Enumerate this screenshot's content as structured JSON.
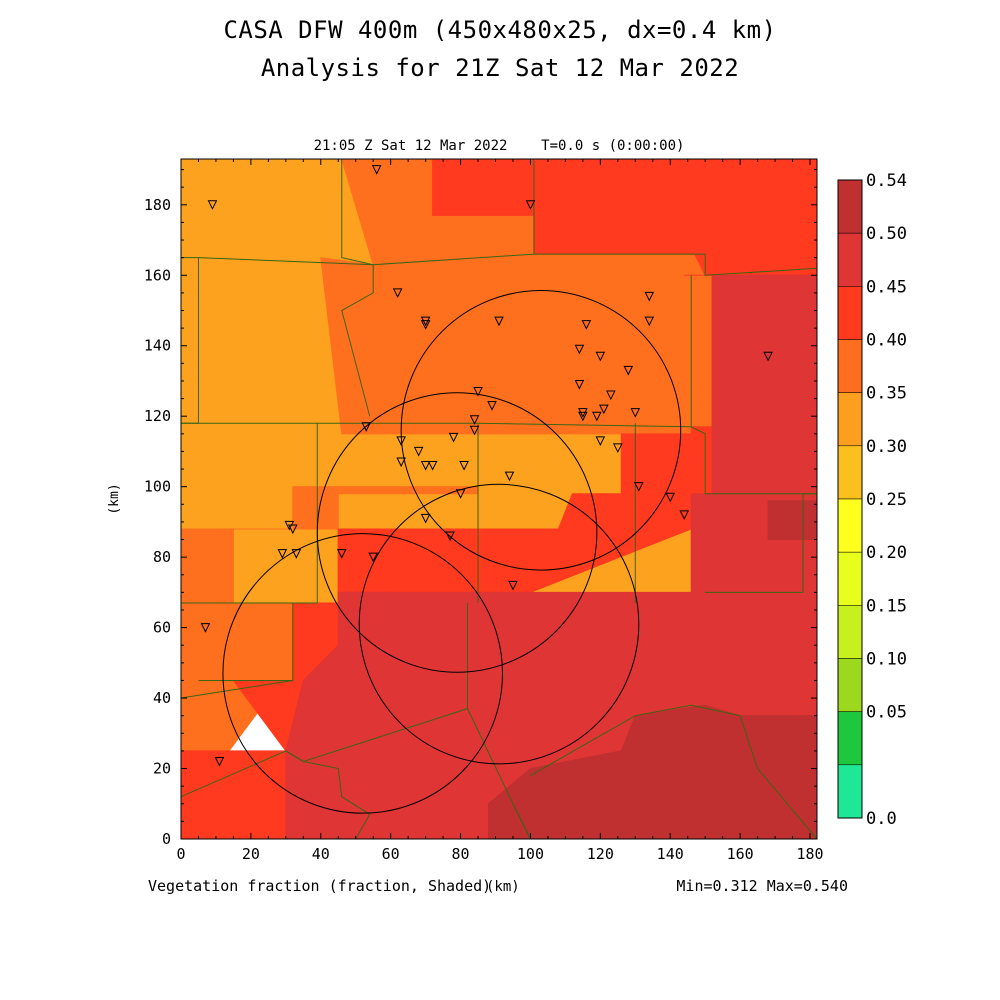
{
  "title_line1": "CASA DFW 400m (450x480x25, dx=0.4 km)",
  "title_line2": "Analysis for 21Z Sat 12 Mar 2022",
  "chart_data": {
    "type": "heatmap",
    "subtitle": "21:05 Z Sat 12 Mar 2022    T=0.0 s (0:00:00)",
    "xlabel": "(km)",
    "ylabel": "(km)",
    "field_label": "Vegetation fraction (fraction, Shaded)",
    "min_max": "Min=0.312 Max=0.540",
    "xlim": [
      0,
      182
    ],
    "ylim": [
      0,
      193
    ],
    "x_ticks": [
      0,
      20,
      40,
      60,
      80,
      100,
      120,
      140,
      160,
      180
    ],
    "y_ticks": [
      0,
      20,
      40,
      60,
      80,
      100,
      120,
      140,
      160,
      180
    ],
    "colorbar": {
      "labels": [
        "0.54",
        "0.50",
        "0.45",
        "0.40",
        "0.35",
        "0.30",
        "0.25",
        "0.20",
        "0.15",
        "0.10",
        "0.05",
        "0.0"
      ],
      "colors": [
        "#c03030",
        "#e03535",
        "#ff3a1e",
        "#ff6e1e",
        "#fc9e1e",
        "#fcc01e",
        "#ffff1e",
        "#e8ff1e",
        "#c8f01e",
        "#9cd81e",
        "#1ec83c",
        "#1ee896"
      ]
    },
    "regions": [
      {
        "value": 0.33,
        "color": "#fca21e",
        "points": [
          [
            0,
            193
          ],
          [
            182,
            193
          ],
          [
            182,
            67
          ],
          [
            0,
            67
          ]
        ]
      },
      {
        "value": 0.37,
        "color": "#ff701e",
        "points": [
          [
            46,
            193
          ],
          [
            182,
            193
          ],
          [
            182,
            70
          ],
          [
            150,
            70
          ],
          [
            150,
            115
          ],
          [
            85,
            115
          ],
          [
            85,
            98
          ],
          [
            45,
            98
          ],
          [
            45,
            88
          ],
          [
            0,
            88
          ],
          [
            0,
            67
          ],
          [
            15,
            67
          ],
          [
            15,
            88
          ],
          [
            32,
            88
          ],
          [
            32,
            100
          ],
          [
            85,
            100
          ],
          [
            85,
            115
          ],
          [
            46,
            115
          ],
          [
            40,
            165
          ],
          [
            55,
            163
          ]
        ]
      },
      {
        "value": 0.37,
        "color": "#ff701e",
        "points": [
          [
            0,
            67
          ],
          [
            40,
            67
          ],
          [
            40,
            40
          ],
          [
            25,
            40
          ],
          [
            10,
            20
          ],
          [
            0,
            20
          ]
        ]
      },
      {
        "value": 0.42,
        "color": "#ff3a1e",
        "points": [
          [
            72,
            193
          ],
          [
            182,
            193
          ],
          [
            182,
            160
          ],
          [
            150,
            160
          ],
          [
            147,
            166
          ],
          [
            101,
            166
          ],
          [
            101,
            177
          ],
          [
            72,
            177
          ]
        ]
      },
      {
        "value": 0.42,
        "color": "#ff3a1e",
        "points": [
          [
            144,
            160
          ],
          [
            152,
            160
          ],
          [
            152,
            117
          ],
          [
            146,
            117
          ],
          [
            146,
            98
          ],
          [
            150,
            98
          ],
          [
            150,
            70
          ],
          [
            182,
            70
          ],
          [
            182,
            160
          ]
        ]
      },
      {
        "value": 0.42,
        "color": "#ff3a1e",
        "points": [
          [
            45,
            88
          ],
          [
            108,
            88
          ],
          [
            112,
            98
          ],
          [
            126,
            98
          ],
          [
            126,
            115
          ],
          [
            146,
            115
          ],
          [
            146,
            88
          ],
          [
            100,
            70
          ],
          [
            45,
            70
          ]
        ]
      },
      {
        "value": 0.42,
        "color": "#ff3a1e",
        "points": [
          [
            32,
            67
          ],
          [
            45,
            67
          ],
          [
            45,
            88
          ],
          [
            60,
            88
          ],
          [
            60,
            63
          ],
          [
            80,
            63
          ],
          [
            80,
            25
          ],
          [
            0,
            25
          ],
          [
            0,
            0
          ],
          [
            30,
            0
          ],
          [
            30,
            25
          ],
          [
            15,
            45
          ],
          [
            32,
            45
          ]
        ]
      },
      {
        "value": 0.47,
        "color": "#e03535",
        "points": [
          [
            45,
            70
          ],
          [
            125,
            70
          ],
          [
            146,
            70
          ],
          [
            146,
            98
          ],
          [
            152,
            98
          ],
          [
            152,
            160
          ],
          [
            182,
            160
          ],
          [
            182,
            0
          ],
          [
            30,
            0
          ],
          [
            30,
            25
          ],
          [
            35,
            45
          ],
          [
            45,
            55
          ]
        ]
      },
      {
        "value": 0.47,
        "color": "#e03535",
        "points": [
          [
            45,
            70
          ],
          [
            60,
            70
          ],
          [
            60,
            63
          ],
          [
            45,
            63
          ]
        ]
      },
      {
        "value": 0.52,
        "color": "#c03030",
        "points": [
          [
            100,
            0
          ],
          [
            182,
            0
          ],
          [
            182,
            35
          ],
          [
            160,
            35
          ],
          [
            150,
            38
          ],
          [
            130,
            35
          ],
          [
            126,
            25
          ],
          [
            100,
            20
          ],
          [
            88,
            10
          ],
          [
            88,
            0
          ]
        ]
      },
      {
        "value": 0.52,
        "color": "#c03030",
        "points": [
          [
            168,
            96
          ],
          [
            182,
            96
          ],
          [
            182,
            85
          ],
          [
            168,
            85
          ]
        ]
      }
    ],
    "stations": [
      [
        9,
        180
      ],
      [
        56,
        190
      ],
      [
        100,
        180
      ],
      [
        62,
        155
      ],
      [
        70,
        146
      ],
      [
        70,
        147
      ],
      [
        91,
        147
      ],
      [
        116,
        146
      ],
      [
        134,
        154
      ],
      [
        134,
        147
      ],
      [
        114,
        139
      ],
      [
        120,
        137
      ],
      [
        114,
        129
      ],
      [
        128,
        133
      ],
      [
        123,
        126
      ],
      [
        85,
        127
      ],
      [
        89,
        123
      ],
      [
        115,
        121
      ],
      [
        115,
        120
      ],
      [
        121,
        122
      ],
      [
        119,
        120
      ],
      [
        130,
        121
      ],
      [
        53,
        117
      ],
      [
        84,
        119
      ],
      [
        84,
        116
      ],
      [
        63,
        113
      ],
      [
        78,
        114
      ],
      [
        68,
        110
      ],
      [
        120,
        113
      ],
      [
        125,
        111
      ],
      [
        63,
        107
      ],
      [
        70,
        106
      ],
      [
        72,
        106
      ],
      [
        81,
        106
      ],
      [
        94,
        103
      ],
      [
        131,
        100
      ],
      [
        80,
        98
      ],
      [
        140,
        97
      ],
      [
        144,
        92
      ],
      [
        70,
        91
      ],
      [
        31,
        89
      ],
      [
        32,
        88
      ],
      [
        29,
        81
      ],
      [
        33,
        81
      ],
      [
        46,
        81
      ],
      [
        55,
        80
      ],
      [
        77,
        86
      ],
      [
        95,
        72
      ],
      [
        7,
        60
      ],
      [
        11,
        22
      ],
      [
        168,
        137
      ]
    ],
    "radar_rings": [
      {
        "center": [
          52,
          47
        ],
        "radius": 40
      },
      {
        "center": [
          79,
          87
        ],
        "radius": 40
      },
      {
        "center": [
          103,
          116
        ],
        "radius": 40
      },
      {
        "center": [
          91,
          61
        ],
        "radius": 40
      }
    ],
    "boundaries": [
      [
        [
          0,
          165
        ],
        [
          5,
          165
        ],
        [
          5,
          118
        ],
        [
          0,
          118
        ]
      ],
      [
        [
          5,
          165
        ],
        [
          55,
          163
        ],
        [
          55,
          155
        ],
        [
          46,
          150
        ],
        [
          54,
          120
        ]
      ],
      [
        [
          46,
          193
        ],
        [
          46,
          165
        ],
        [
          55,
          163
        ],
        [
          101,
          166
        ],
        [
          101,
          193
        ]
      ],
      [
        [
          101,
          166
        ],
        [
          150,
          166
        ],
        [
          150,
          160
        ],
        [
          182,
          162
        ]
      ],
      [
        [
          0,
          118
        ],
        [
          54,
          118
        ],
        [
          85,
          118
        ],
        [
          146,
          117
        ],
        [
          150,
          115
        ],
        [
          150,
          98
        ],
        [
          182,
          98
        ]
      ],
      [
        [
          39,
          118
        ],
        [
          39,
          67
        ],
        [
          0,
          67
        ]
      ],
      [
        [
          85,
          118
        ],
        [
          85,
          67
        ]
      ],
      [
        [
          130,
          118
        ],
        [
          130,
          67
        ]
      ],
      [
        [
          146,
          117
        ],
        [
          146,
          160
        ]
      ],
      [
        [
          182,
          98
        ],
        [
          178,
          98
        ],
        [
          178,
          70
        ],
        [
          150,
          70
        ]
      ],
      [
        [
          0,
          67
        ],
        [
          32,
          67
        ],
        [
          32,
          45
        ],
        [
          5,
          45
        ]
      ],
      [
        [
          0,
          40
        ],
        [
          32,
          45
        ]
      ],
      [
        [
          0,
          12
        ],
        [
          30,
          25
        ],
        [
          35,
          22
        ],
        [
          45,
          20
        ],
        [
          46,
          12
        ],
        [
          54,
          7
        ],
        [
          50,
          0
        ]
      ],
      [
        [
          30,
          25
        ],
        [
          35,
          22
        ],
        [
          82,
          37
        ],
        [
          95,
          10
        ],
        [
          100,
          0
        ]
      ],
      [
        [
          82,
          37
        ],
        [
          82,
          67
        ]
      ],
      [
        [
          100,
          18
        ],
        [
          130,
          35
        ],
        [
          146,
          38
        ],
        [
          160,
          35
        ],
        [
          165,
          20
        ],
        [
          182,
          0
        ]
      ],
      [
        [
          95,
          10
        ],
        [
          100,
          0
        ]
      ]
    ]
  }
}
